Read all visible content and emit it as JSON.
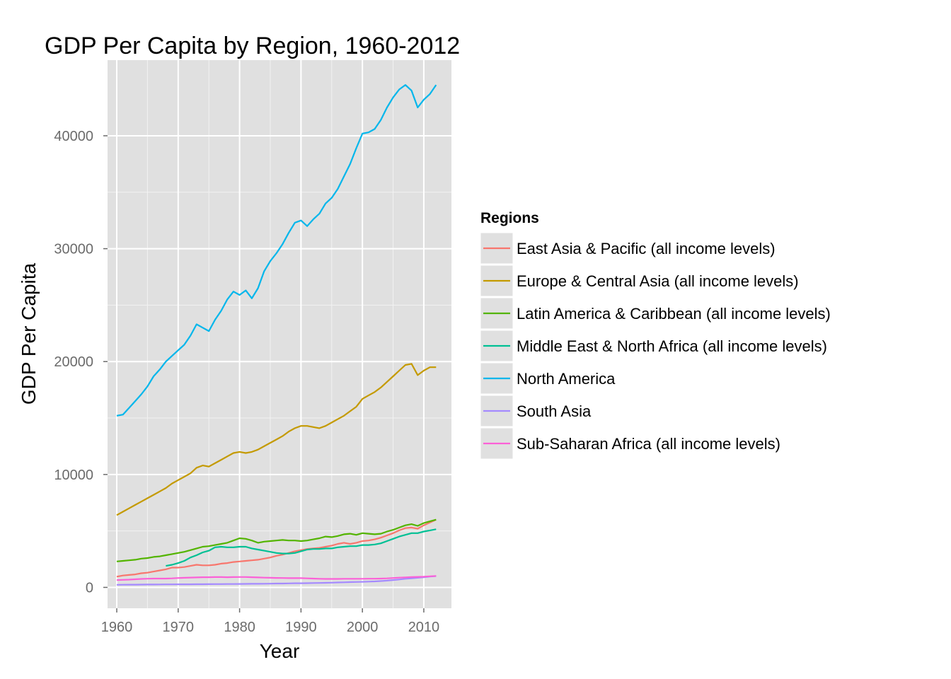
{
  "chart_data": {
    "type": "line",
    "title": "GDP Per Capita by Region, 1960-2012",
    "xlabel": "Year",
    "ylabel": "GDP Per Capita",
    "xlim": [
      1958.5,
      2014.5
    ],
    "ylim": [
      -1850,
      46700
    ],
    "x_ticks": [
      1960,
      1970,
      1980,
      1990,
      2000,
      2010
    ],
    "x_tick_labels": [
      "1960",
      "1970",
      "1980",
      "1990",
      "2000",
      "2010"
    ],
    "y_ticks": [
      0,
      10000,
      20000,
      30000,
      40000
    ],
    "y_tick_labels": [
      "0",
      "10000",
      "20000",
      "30000",
      "40000"
    ],
    "grid": true,
    "panel_background": "#e0e0e0",
    "legend": {
      "title": "Regions",
      "position": "right"
    },
    "series": [
      {
        "name": "East Asia & Pacific (all income levels)",
        "color": "#f8766d",
        "x": [
          1960,
          1961,
          1962,
          1963,
          1964,
          1965,
          1966,
          1967,
          1968,
          1969,
          1970,
          1971,
          1972,
          1973,
          1974,
          1975,
          1976,
          1977,
          1978,
          1979,
          1980,
          1981,
          1982,
          1983,
          1984,
          1985,
          1986,
          1987,
          1988,
          1989,
          1990,
          1991,
          1992,
          1993,
          1994,
          1995,
          1996,
          1997,
          1998,
          1999,
          2000,
          2001,
          2002,
          2003,
          2004,
          2005,
          2006,
          2007,
          2008,
          2009,
          2010,
          2011,
          2012
        ],
        "values": [
          950,
          1050,
          1100,
          1150,
          1250,
          1300,
          1400,
          1500,
          1600,
          1750,
          1750,
          1800,
          1900,
          2000,
          1950,
          1950,
          2000,
          2100,
          2150,
          2250,
          2300,
          2350,
          2400,
          2450,
          2550,
          2650,
          2800,
          2900,
          3050,
          3200,
          3300,
          3400,
          3450,
          3500,
          3600,
          3700,
          3850,
          3950,
          3850,
          3950,
          4100,
          4150,
          4250,
          4400,
          4600,
          4800,
          5050,
          5250,
          5300,
          5200,
          5500,
          5750,
          6000
        ]
      },
      {
        "name": "Europe & Central Asia (all income levels)",
        "color": "#c49a00",
        "x": [
          1960,
          1961,
          1962,
          1963,
          1964,
          1965,
          1966,
          1967,
          1968,
          1969,
          1970,
          1971,
          1972,
          1973,
          1974,
          1975,
          1976,
          1977,
          1978,
          1979,
          1980,
          1981,
          1982,
          1983,
          1984,
          1985,
          1986,
          1987,
          1988,
          1989,
          1990,
          1991,
          1992,
          1993,
          1994,
          1995,
          1996,
          1997,
          1998,
          1999,
          2000,
          2001,
          2002,
          2003,
          2004,
          2005,
          2006,
          2007,
          2008,
          2009,
          2010,
          2011,
          2012
        ],
        "values": [
          6400,
          6700,
          7000,
          7300,
          7600,
          7900,
          8200,
          8500,
          8800,
          9200,
          9500,
          9800,
          10100,
          10600,
          10800,
          10700,
          11000,
          11300,
          11600,
          11900,
          12000,
          11900,
          12000,
          12200,
          12500,
          12800,
          13100,
          13400,
          13800,
          14100,
          14300,
          14300,
          14200,
          14100,
          14300,
          14600,
          14900,
          15200,
          15600,
          16000,
          16700,
          17000,
          17300,
          17700,
          18200,
          18700,
          19200,
          19700,
          19800,
          18800,
          19200,
          19500,
          19500
        ]
      },
      {
        "name": "Latin America & Caribbean (all income levels)",
        "color": "#53b400",
        "x": [
          1960,
          1961,
          1962,
          1963,
          1964,
          1965,
          1966,
          1967,
          1968,
          1969,
          1970,
          1971,
          1972,
          1973,
          1974,
          1975,
          1976,
          1977,
          1978,
          1979,
          1980,
          1981,
          1982,
          1983,
          1984,
          1985,
          1986,
          1987,
          1988,
          1989,
          1990,
          1991,
          1992,
          1993,
          1994,
          1995,
          1996,
          1997,
          1998,
          1999,
          2000,
          2001,
          2002,
          2003,
          2004,
          2005,
          2006,
          2007,
          2008,
          2009,
          2010,
          2011,
          2012
        ],
        "values": [
          2300,
          2350,
          2400,
          2450,
          2550,
          2600,
          2700,
          2750,
          2850,
          2950,
          3050,
          3150,
          3300,
          3450,
          3600,
          3650,
          3750,
          3850,
          3950,
          4150,
          4350,
          4300,
          4150,
          3950,
          4050,
          4100,
          4150,
          4200,
          4150,
          4150,
          4100,
          4150,
          4250,
          4350,
          4500,
          4450,
          4550,
          4700,
          4750,
          4650,
          4800,
          4750,
          4700,
          4750,
          4950,
          5100,
          5300,
          5500,
          5600,
          5450,
          5700,
          5850,
          6000
        ]
      },
      {
        "name": "Middle East & North Africa (all income levels)",
        "color": "#00c094",
        "x": [
          1968,
          1969,
          1970,
          1971,
          1972,
          1973,
          1974,
          1975,
          1976,
          1977,
          1978,
          1979,
          1980,
          1981,
          1982,
          1983,
          1984,
          1985,
          1986,
          1987,
          1988,
          1989,
          1990,
          1991,
          1992,
          1993,
          1994,
          1995,
          1996,
          1997,
          1998,
          1999,
          2000,
          2001,
          2002,
          2003,
          2004,
          2005,
          2006,
          2007,
          2008,
          2009,
          2010,
          2011,
          2012
        ],
        "values": [
          1900,
          2000,
          2150,
          2350,
          2650,
          2850,
          3100,
          3250,
          3550,
          3600,
          3550,
          3550,
          3600,
          3600,
          3450,
          3350,
          3250,
          3150,
          3050,
          3000,
          3000,
          3050,
          3200,
          3350,
          3400,
          3400,
          3450,
          3450,
          3550,
          3600,
          3650,
          3650,
          3750,
          3750,
          3800,
          3900,
          4100,
          4300,
          4500,
          4650,
          4800,
          4800,
          4950,
          5050,
          5150
        ]
      },
      {
        "name": "North America",
        "color": "#00b6eb",
        "x": [
          1960,
          1961,
          1962,
          1963,
          1964,
          1965,
          1966,
          1967,
          1968,
          1969,
          1970,
          1971,
          1972,
          1973,
          1974,
          1975,
          1976,
          1977,
          1978,
          1979,
          1980,
          1981,
          1982,
          1983,
          1984,
          1985,
          1986,
          1987,
          1988,
          1989,
          1990,
          1991,
          1992,
          1993,
          1994,
          1995,
          1996,
          1997,
          1998,
          1999,
          2000,
          2001,
          2002,
          2003,
          2004,
          2005,
          2006,
          2007,
          2008,
          2009,
          2010,
          2011,
          2012
        ],
        "values": [
          15200,
          15300,
          15900,
          16500,
          17100,
          17800,
          18700,
          19300,
          20000,
          20500,
          21000,
          21500,
          22300,
          23300,
          23000,
          22700,
          23700,
          24500,
          25500,
          26200,
          25900,
          26300,
          25600,
          26500,
          28000,
          28900,
          29600,
          30400,
          31400,
          32300,
          32500,
          32000,
          32600,
          33100,
          34000,
          34500,
          35300,
          36400,
          37500,
          38900,
          40200,
          40300,
          40600,
          41400,
          42500,
          43400,
          44100,
          44500,
          44000,
          42500,
          43200,
          43700,
          44500
        ]
      },
      {
        "name": "South Asia",
        "color": "#a58aff",
        "x": [
          1960,
          1961,
          1962,
          1963,
          1964,
          1965,
          1966,
          1967,
          1968,
          1969,
          1970,
          1971,
          1972,
          1973,
          1974,
          1975,
          1976,
          1977,
          1978,
          1979,
          1980,
          1981,
          1982,
          1983,
          1984,
          1985,
          1986,
          1987,
          1988,
          1989,
          1990,
          1991,
          1992,
          1993,
          1994,
          1995,
          1996,
          1997,
          1998,
          1999,
          2000,
          2001,
          2002,
          2003,
          2004,
          2005,
          2006,
          2007,
          2008,
          2009,
          2010,
          2011,
          2012
        ],
        "values": [
          230,
          235,
          240,
          245,
          250,
          255,
          255,
          260,
          265,
          270,
          275,
          275,
          275,
          280,
          280,
          285,
          290,
          295,
          300,
          300,
          305,
          310,
          315,
          320,
          325,
          330,
          340,
          345,
          355,
          365,
          370,
          375,
          385,
          395,
          405,
          420,
          435,
          450,
          465,
          480,
          495,
          510,
          530,
          560,
          600,
          650,
          700,
          760,
          800,
          850,
          900,
          960,
          1000
        ]
      },
      {
        "name": "Sub-Saharan Africa (all income levels)",
        "color": "#fb61d7",
        "x": [
          1960,
          1961,
          1962,
          1963,
          1964,
          1965,
          1966,
          1967,
          1968,
          1969,
          1970,
          1971,
          1972,
          1973,
          1974,
          1975,
          1976,
          1977,
          1978,
          1979,
          1980,
          1981,
          1982,
          1983,
          1984,
          1985,
          1986,
          1987,
          1988,
          1989,
          1990,
          1991,
          1992,
          1993,
          1994,
          1995,
          1996,
          1997,
          1998,
          1999,
          2000,
          2001,
          2002,
          2003,
          2004,
          2005,
          2006,
          2007,
          2008,
          2009,
          2010,
          2011,
          2012
        ],
        "values": [
          650,
          670,
          690,
          720,
          750,
          770,
          780,
          780,
          780,
          800,
          830,
          850,
          870,
          880,
          900,
          900,
          910,
          910,
          900,
          910,
          920,
          920,
          900,
          880,
          860,
          850,
          840,
          830,
          820,
          820,
          820,
          800,
          780,
          760,
          750,
          750,
          750,
          760,
          760,
          760,
          760,
          770,
          770,
          780,
          800,
          830,
          860,
          890,
          920,
          930,
          950,
          980,
          1010
        ]
      }
    ]
  }
}
